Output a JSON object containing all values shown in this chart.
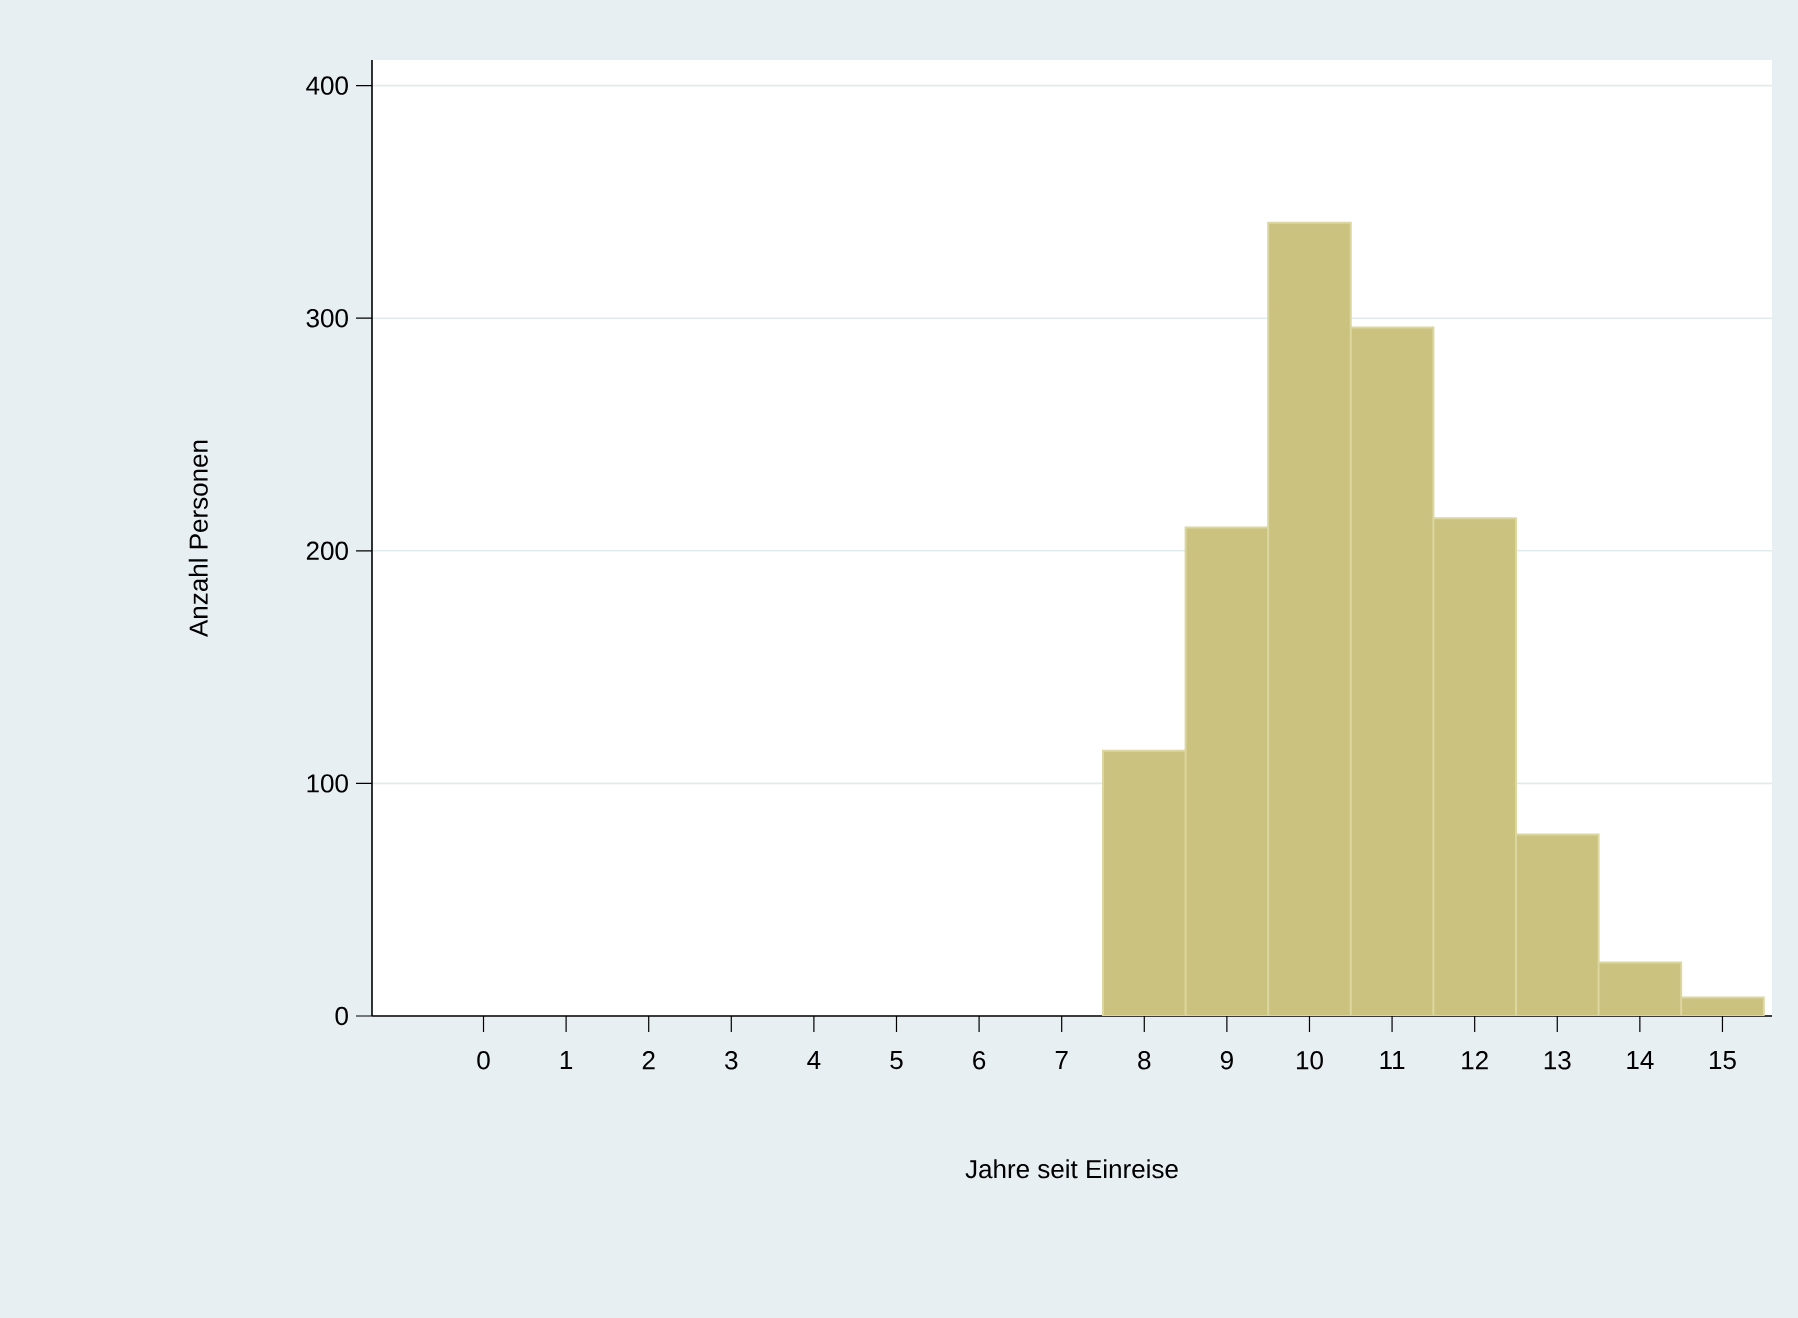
{
  "chart_data": {
    "type": "histogram",
    "xlabel": "Jahre seit Einreise",
    "ylabel": "Anzahl Personen",
    "bins": [
      7.5,
      8.5,
      9.5,
      10.5,
      11.5,
      12.5,
      13.5,
      14.5,
      15.5
    ],
    "values": [
      114,
      210,
      341,
      296,
      214,
      78,
      23,
      8
    ],
    "color": "#cbc27f",
    "xlim": [
      -1.35,
      15.6
    ],
    "ylim": [
      0,
      411
    ],
    "xticks": [
      0,
      1,
      2,
      3,
      4,
      5,
      6,
      7,
      8,
      9,
      10,
      11,
      12,
      13,
      14,
      15
    ],
    "yticks": [
      0,
      100,
      200,
      300,
      400
    ],
    "grid": "y"
  }
}
